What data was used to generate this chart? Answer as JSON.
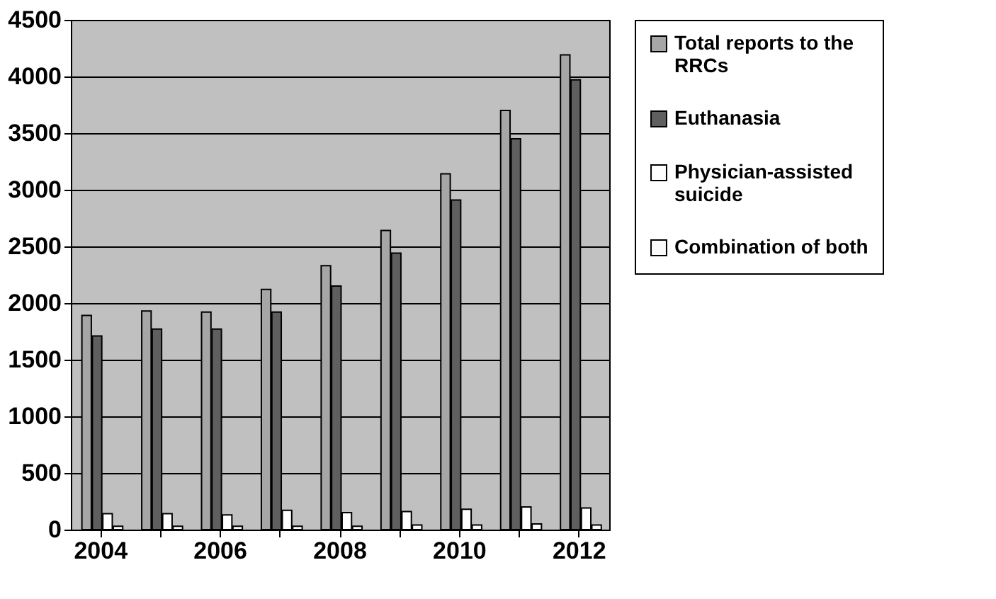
{
  "chart_data": {
    "type": "bar",
    "categories": [
      "2004",
      null,
      "2006",
      null,
      "2008",
      null,
      "2010",
      null,
      "2012"
    ],
    "series": [
      {
        "name": "Total reports to the RRCs",
        "color": "#a6a6a6",
        "values": [
          1890,
          1930,
          1920,
          2120,
          2330,
          2640,
          3140,
          3700,
          4190
        ]
      },
      {
        "name": "Euthanasia",
        "color": "#5f5f5f",
        "values": [
          1710,
          1770,
          1770,
          1920,
          2150,
          2440,
          2910,
          3450,
          3970
        ]
      },
      {
        "name": "Physician-assisted suicide",
        "color": "#ffffff",
        "values": [
          140,
          140,
          130,
          170,
          150,
          160,
          180,
          200,
          190
        ]
      },
      {
        "name": "Combination of both",
        "color": "#fafafa",
        "values": [
          30,
          30,
          30,
          30,
          30,
          40,
          40,
          50,
          40
        ]
      }
    ],
    "ylim": [
      0,
      4500
    ],
    "yticks": [
      0,
      500,
      1000,
      1500,
      2000,
      2500,
      3000,
      3500,
      4000,
      4500
    ],
    "grid": "y",
    "legend": "right"
  }
}
